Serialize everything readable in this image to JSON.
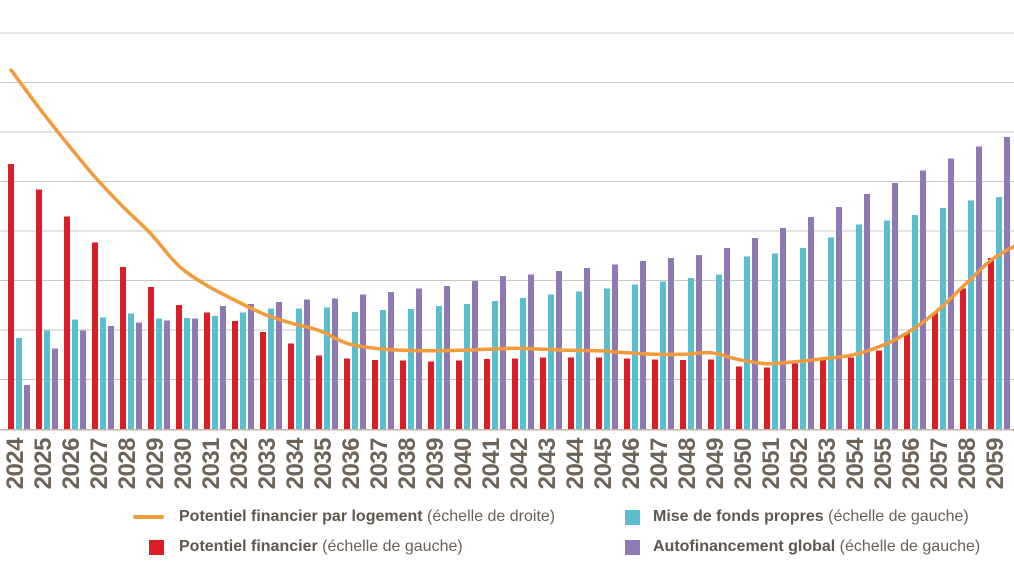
{
  "chart_data": {
    "type": "combo-bar-line",
    "title": "",
    "categories": [
      "2024",
      "2025",
      "2026",
      "2027",
      "2028",
      "2029",
      "2030",
      "2031",
      "2032",
      "2033",
      "2034",
      "2035",
      "2036",
      "2037",
      "2038",
      "2039",
      "2040",
      "2041",
      "2042",
      "2043",
      "2044",
      "2045",
      "2046",
      "2047",
      "2048",
      "2049",
      "2050",
      "2051",
      "2052",
      "2053",
      "2054",
      "2055",
      "2056",
      "2057",
      "2058",
      "2059"
    ],
    "value_scale_note": "no numeric axis labels shown; values estimated in horizontal-gridline units (8 intervals between baseline and top gridline)",
    "ylim": [
      0,
      8
    ],
    "grid": true,
    "gridline_intervals": 8,
    "x_tick_rotation": -90,
    "legend_position": "bottom",
    "series": [
      {
        "name": "Potentiel financier",
        "kind": "bar",
        "axis": "gauche",
        "color": "#dc1f26",
        "values": [
          5.36,
          4.85,
          4.3,
          3.78,
          3.28,
          2.88,
          2.52,
          2.36,
          2.19,
          1.97,
          1.74,
          1.5,
          1.43,
          1.4,
          1.39,
          1.37,
          1.39,
          1.42,
          1.43,
          1.45,
          1.45,
          1.45,
          1.43,
          1.41,
          1.4,
          1.41,
          1.27,
          1.25,
          1.33,
          1.43,
          1.45,
          1.6,
          1.95,
          2.36,
          2.85,
          3.46
        ]
      },
      {
        "name": "Mise de fonds propres",
        "kind": "bar",
        "axis": "gauche",
        "color": "#5abed2",
        "values": [
          1.85,
          2.0,
          2.22,
          2.26,
          2.34,
          2.24,
          2.25,
          2.29,
          2.36,
          2.44,
          2.44,
          2.46,
          2.37,
          2.41,
          2.43,
          2.5,
          2.54,
          2.6,
          2.66,
          2.73,
          2.79,
          2.85,
          2.93,
          2.99,
          3.06,
          3.13,
          3.5,
          3.56,
          3.67,
          3.88,
          4.14,
          4.22,
          4.33,
          4.47,
          4.63,
          4.7
        ]
      },
      {
        "name": "Autofinancement global",
        "kind": "bar",
        "axis": "gauche",
        "color": "#8d79b6",
        "values": [
          0.9,
          1.64,
          2.0,
          2.09,
          2.16,
          2.2,
          2.24,
          2.49,
          2.54,
          2.58,
          2.63,
          2.65,
          2.73,
          2.78,
          2.85,
          2.9,
          3.0,
          3.1,
          3.13,
          3.2,
          3.26,
          3.33,
          3.4,
          3.46,
          3.53,
          3.67,
          3.87,
          4.07,
          4.29,
          4.49,
          4.76,
          4.98,
          5.23,
          5.47,
          5.72,
          5.91
        ]
      },
      {
        "name": "Potentiel financier par logement",
        "kind": "line",
        "axis": "droite",
        "color": "#f29a3c",
        "values": [
          7.26,
          6.5,
          5.78,
          5.1,
          4.5,
          3.95,
          3.3,
          2.91,
          2.61,
          2.34,
          2.15,
          2.0,
          1.74,
          1.64,
          1.6,
          1.59,
          1.6,
          1.62,
          1.64,
          1.62,
          1.6,
          1.59,
          1.55,
          1.52,
          1.52,
          1.55,
          1.41,
          1.33,
          1.37,
          1.43,
          1.5,
          1.67,
          1.95,
          2.36,
          2.89,
          3.42
        ],
        "right_edge_extension_value": 3.7
      }
    ]
  },
  "legend": {
    "items": [
      {
        "label": "Potentiel financier par logement",
        "suffix": " (échelle de droite)",
        "swatch": "line",
        "color": "#f29a3c"
      },
      {
        "label": "Potentiel financier",
        "suffix": " (échelle de gauche)",
        "swatch": "square",
        "color": "#dc1f26"
      },
      {
        "label": "Mise de fonds propres",
        "suffix": " (échelle de gauche)",
        "swatch": "square",
        "color": "#5abed2"
      },
      {
        "label": "Autofinancement global",
        "suffix": " (échelle de gauche)",
        "swatch": "square",
        "color": "#8d79b6"
      }
    ]
  },
  "colors": {
    "background": "#ffffff",
    "gridline": "#ccc7c1",
    "axis_line": "#c4b5a7",
    "tick_text": "#6e6358",
    "legend_text": "#6a6056"
  }
}
